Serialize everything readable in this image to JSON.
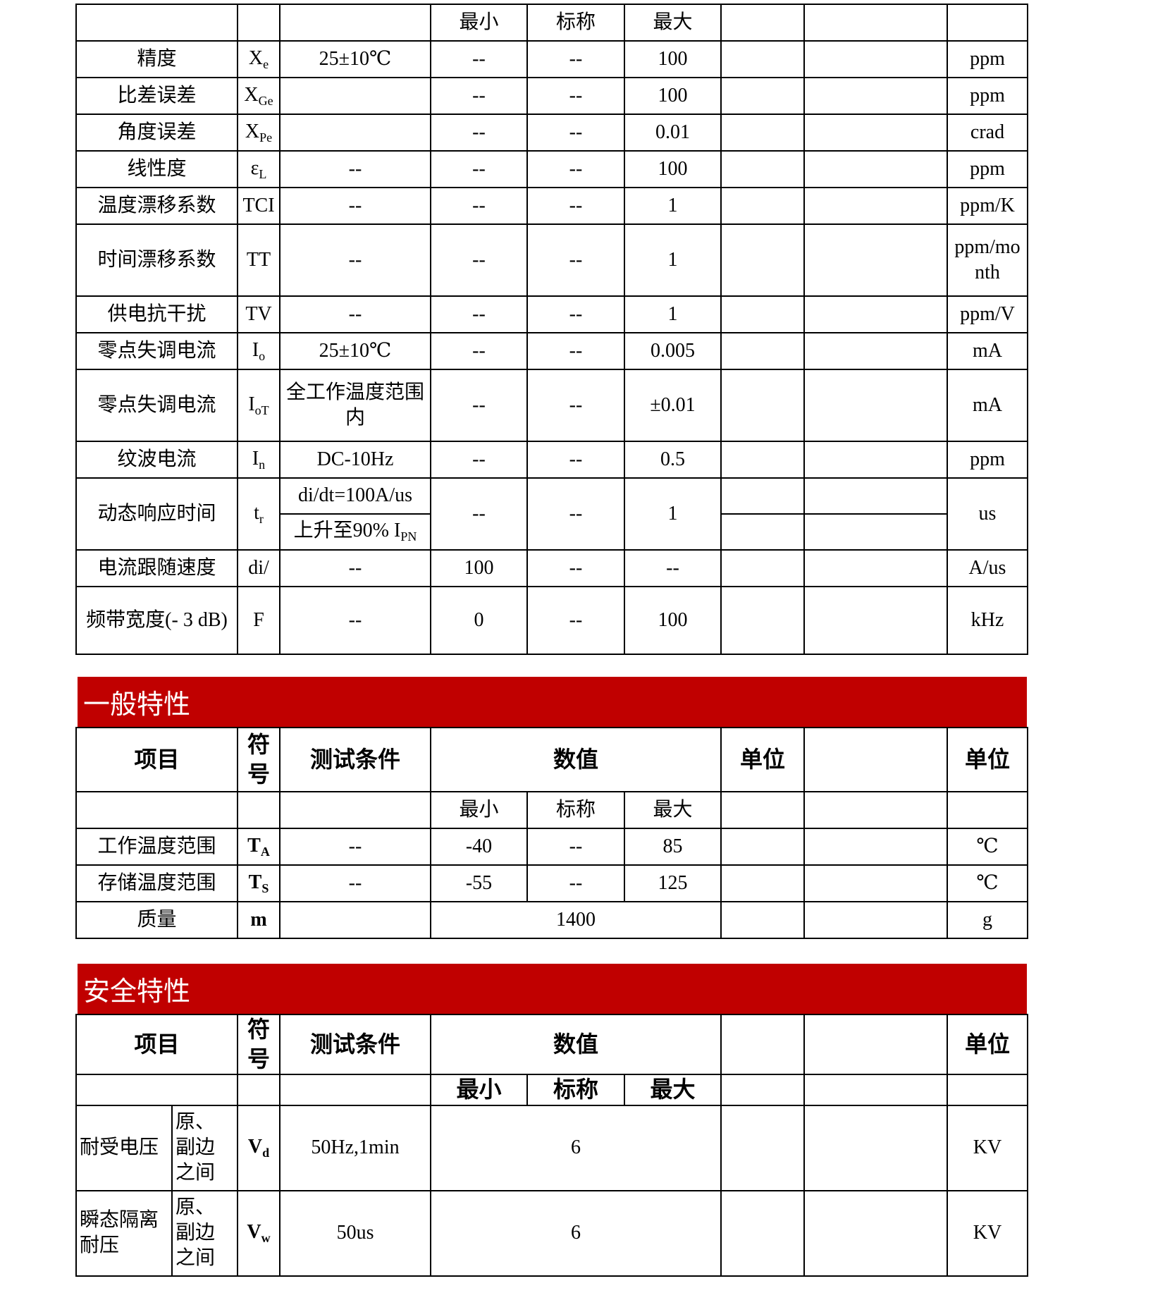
{
  "table1": {
    "sub_header": [
      "最小",
      "标称",
      "最大"
    ],
    "rows": [
      {
        "item": "精度",
        "symbol": {
          "base": "X",
          "sub": "e"
        },
        "condition": "25±10℃",
        "min": "--",
        "nominal": "--",
        "max": "100",
        "unit": "ppm"
      },
      {
        "item": "比差误差",
        "symbol": {
          "base": "X",
          "sub": "Ge"
        },
        "min": "--",
        "nominal": "--",
        "max": "100",
        "unit": "ppm"
      },
      {
        "item": "角度误差",
        "symbol": {
          "base": "X",
          "sub": "Pe"
        },
        "min": "--",
        "nominal": "--",
        "max": "0.01",
        "unit": "crad"
      },
      {
        "item": "线性度",
        "symbol": {
          "base": "ε",
          "sub": "L"
        },
        "condition": "--",
        "min": "--",
        "nominal": "--",
        "max": "100",
        "unit": "ppm"
      },
      {
        "item": "温度漂移系数",
        "symbol": "TCI",
        "condition": "--",
        "min": "--",
        "nominal": "--",
        "max": "1",
        "unit": "ppm/K"
      },
      {
        "item": "时间漂移系数",
        "symbol": "TT",
        "condition": "--",
        "min": "--",
        "nominal": "--",
        "max": "1",
        "unit": "ppm/month"
      },
      {
        "item": "供电抗干扰",
        "symbol": "TV",
        "condition": "--",
        "min": "--",
        "nominal": "--",
        "max": "1",
        "unit": "ppm/V"
      },
      {
        "item": "零点失调电流",
        "symbol": {
          "base": "I",
          "sub": "o"
        },
        "condition": "25±10℃",
        "min": "--",
        "nominal": "--",
        "max": "0.005",
        "unit": "mA"
      },
      {
        "item": "零点失调电流",
        "symbol": {
          "base": "I",
          "sub": "oT"
        },
        "condition": "全工作温度范围内",
        "min": "--",
        "nominal": "--",
        "max": "±0.01",
        "unit": "mA"
      },
      {
        "item": "纹波电流",
        "symbol": {
          "base": "I",
          "sub": "n"
        },
        "condition": "DC-10Hz",
        "min": "--",
        "nominal": "--",
        "max": "0.5",
        "unit": "ppm"
      },
      {
        "item": "动态响应时间",
        "symbol": {
          "base": "t",
          "sub": "r"
        },
        "condition": [
          "di/dt=100A/us",
          {
            "base": "上升至90% I",
            "sub": "PN"
          }
        ],
        "min": "--",
        "nominal": "--",
        "max": "1",
        "unit": "us"
      },
      {
        "item": "电流跟随速度",
        "symbol": "di/",
        "condition": "--",
        "min": "100",
        "nominal": "--",
        "max": "--",
        "unit": "A/us"
      },
      {
        "item": "频带宽度(- 3 dB)",
        "symbol": "F",
        "condition": "--",
        "min": "0",
        "nominal": "--",
        "max": "100",
        "unit": "kHz"
      }
    ]
  },
  "section_general": {
    "title": "一般特性",
    "header": {
      "item": "项目",
      "symbol": "符号",
      "condition": "测试条件",
      "values": "数值",
      "unit_a": "单位",
      "unit_b": "单位"
    },
    "sub_header": [
      "最小",
      "标称",
      "最大"
    ],
    "rows": [
      {
        "item": "工作温度范围",
        "symbol": {
          "base": "T",
          "sub": "A"
        },
        "condition": "--",
        "min": "-40",
        "nominal": "--",
        "max": "85",
        "unit": "℃"
      },
      {
        "item": "存储温度范围",
        "symbol": {
          "base": "T",
          "sub": "S"
        },
        "condition": "--",
        "min": "-55",
        "nominal": "--",
        "max": "125",
        "unit": "℃"
      },
      {
        "item": "质量",
        "symbol": "m",
        "value": "1400",
        "unit": "g"
      }
    ]
  },
  "section_safety": {
    "title": "安全特性",
    "header": {
      "item": "项目",
      "symbol": "符号",
      "condition": "测试条件",
      "values": "数值",
      "unit": "单位"
    },
    "sub_header": [
      "最小",
      "标称",
      "最大"
    ],
    "rows": [
      {
        "item": "耐受电压",
        "location": "原、副边之间",
        "symbol": {
          "base": "V",
          "sub": "d"
        },
        "condition": "50Hz,1min",
        "value": "6",
        "unit": "KV"
      },
      {
        "item": "瞬态隔离耐压",
        "location": "原、副边之间",
        "symbol": {
          "base": "V",
          "sub": "w"
        },
        "condition": "50us",
        "value": "6",
        "unit": "KV"
      }
    ]
  }
}
